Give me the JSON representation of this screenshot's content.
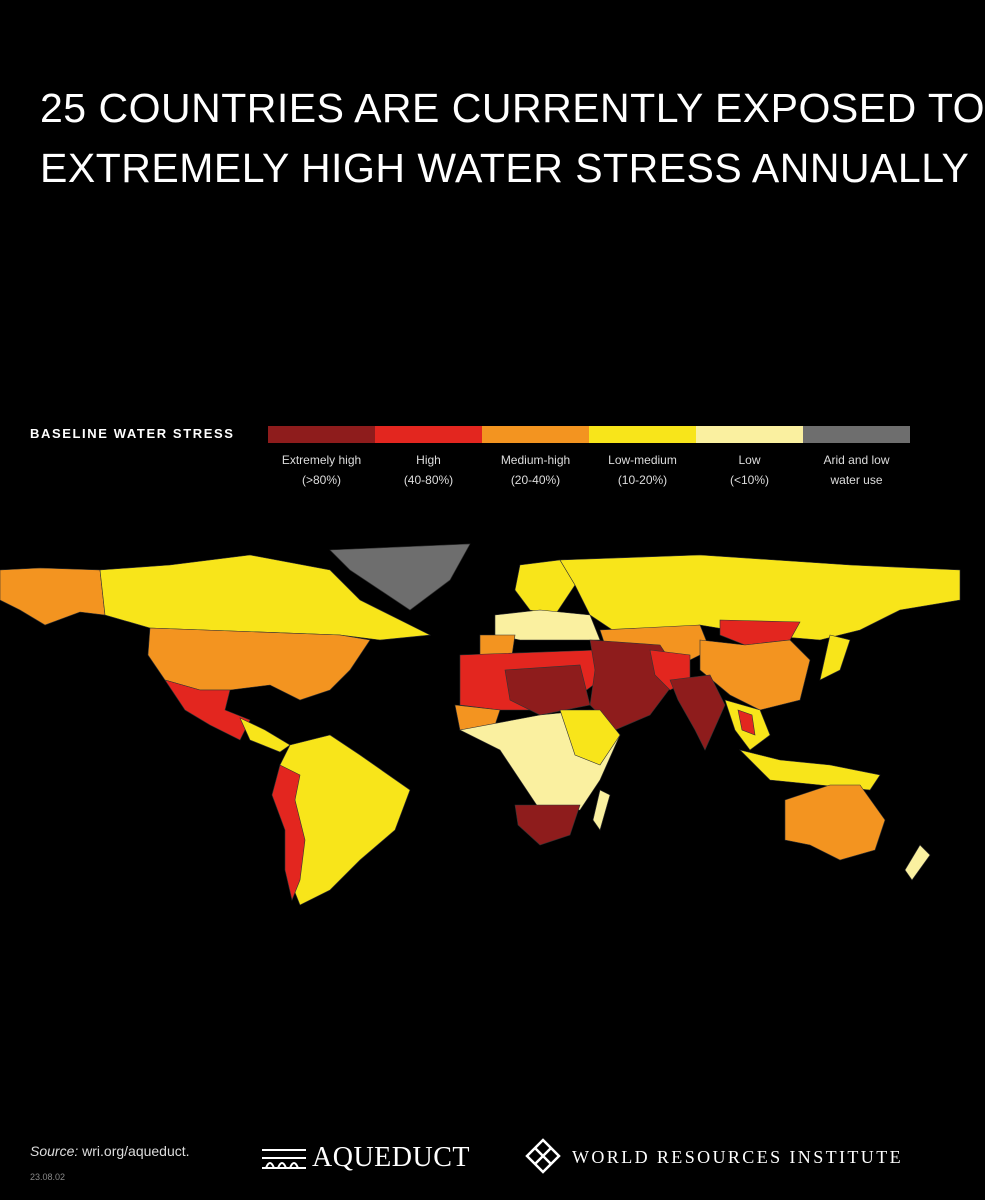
{
  "header": {
    "title_lines": [
      "25 COUNTRIES ARE CURRENTLY EXPOSED TO",
      "EXTREMELY HIGH WATER STRESS ANNUALLY"
    ]
  },
  "legend": {
    "heading": "BASELINE WATER STRESS",
    "items": [
      {
        "label": "Extremely high",
        "range": "(>80%)",
        "color": "#8e1c1c"
      },
      {
        "label": "High",
        "range": "(40-80%)",
        "color": "#e3261f"
      },
      {
        "label": "Medium-high",
        "range": "(20-40%)",
        "color": "#f39420"
      },
      {
        "label": "Low-medium",
        "range": "(10-20%)",
        "color": "#f8e51a"
      },
      {
        "label": "Low",
        "range": "(<10%)",
        "color": "#faf0a0"
      },
      {
        "label": "Arid and low",
        "range": "water use",
        "color": "#6e6e6e"
      }
    ]
  },
  "footer": {
    "source_label": "Source:",
    "source_url": "wri.org/aqueduct.",
    "date": "23.08.02",
    "logo_aqueduct": "AQUEDUCT",
    "logo_wri": "WORLD RESOURCES INSTITUTE"
  }
}
